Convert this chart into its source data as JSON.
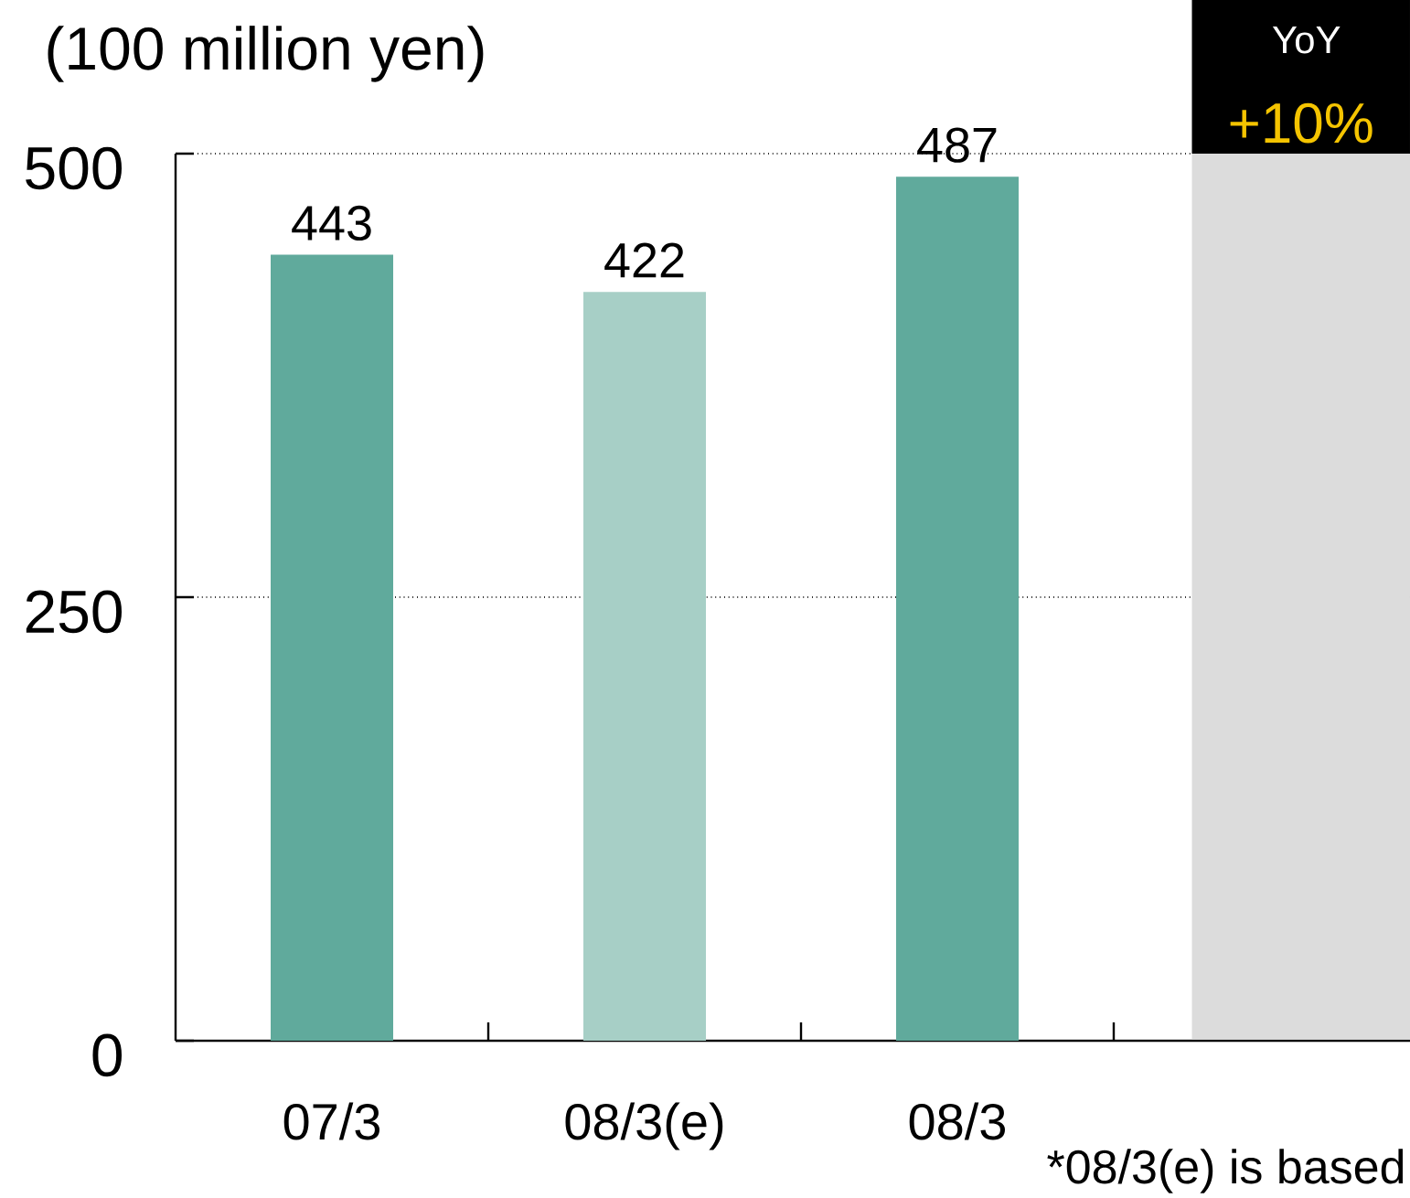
{
  "chart_data": {
    "type": "bar",
    "ylabel": "(100 million yen)",
    "categories": [
      "07/3",
      "08/3(e)",
      "08/3"
    ],
    "values": [
      443,
      422,
      487
    ],
    "colors": [
      "#60aa9c",
      "#a7cfc6",
      "#60aa9c"
    ],
    "ylim": [
      0,
      500
    ],
    "yticks": [
      0,
      250,
      500
    ],
    "grid": "y",
    "data_labels": true,
    "annotations": [
      "YoY",
      "+10%",
      "*08/3(e) is based"
    ]
  }
}
